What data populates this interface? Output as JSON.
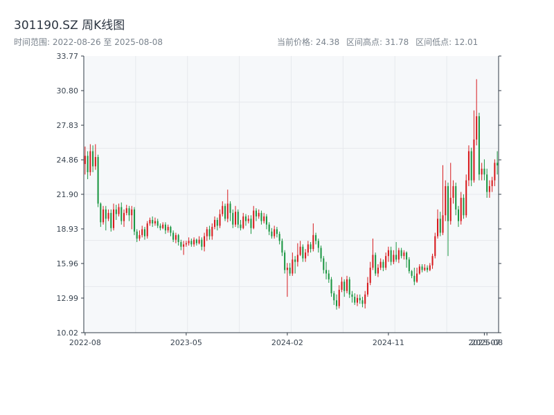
{
  "header": {
    "title": "301190.SZ 周K线图",
    "date_range": "时间范围: 2022-08-26 至 2025-08-08",
    "current_price": "当前价格: 24.38",
    "high": "区间高点: 31.78",
    "low": "区间低点: 12.01"
  },
  "colors": {
    "up": "#d7191c",
    "down": "#1a9641",
    "plot_bg": "#f6f8fa",
    "grid": "#e6e9ed",
    "axis": "#2f3a45"
  },
  "chart_data": {
    "type": "candlestick",
    "ylim": [
      10.02,
      33.77
    ],
    "y_ticks": [
      "33.77",
      "30.80",
      "27.83",
      "24.86",
      "21.90",
      "18.93",
      "15.96",
      "12.99",
      "10.02"
    ],
    "x_ticks": [
      "2022-08",
      "2023-05",
      "2024-02",
      "2024-11",
      "2025-07",
      "2025-08"
    ],
    "x_tick_index": [
      0,
      39,
      78,
      117,
      154,
      155
    ],
    "grid": true,
    "candles": [
      [
        24.5,
        25.2,
        26.0,
        23.6
      ],
      [
        25.2,
        23.8,
        25.6,
        23.2
      ],
      [
        23.8,
        25.6,
        26.2,
        23.5
      ],
      [
        25.6,
        24.3,
        26.1,
        23.8
      ],
      [
        24.3,
        25.1,
        26.2,
        24.0
      ],
      [
        25.1,
        21.1,
        25.3,
        20.8
      ],
      [
        21.1,
        19.5,
        21.2,
        19.1
      ],
      [
        19.5,
        20.6,
        20.9,
        19.3
      ],
      [
        20.6,
        19.8,
        20.9,
        18.8
      ],
      [
        19.8,
        20.3,
        20.6,
        19.6
      ],
      [
        20.3,
        19.0,
        20.6,
        18.7
      ],
      [
        19.0,
        20.6,
        21.1,
        18.8
      ],
      [
        20.6,
        20.2,
        21.0,
        19.7
      ],
      [
        20.2,
        20.8,
        21.1,
        20.0
      ],
      [
        20.8,
        19.6,
        21.2,
        19.3
      ],
      [
        19.6,
        20.3,
        20.6,
        19.1
      ],
      [
        20.3,
        20.7,
        21.0,
        20.1
      ],
      [
        20.7,
        20.1,
        20.9,
        19.6
      ],
      [
        20.1,
        20.6,
        20.9,
        18.9
      ],
      [
        20.6,
        18.7,
        20.8,
        18.4
      ],
      [
        18.7,
        18.1,
        18.9,
        17.8
      ],
      [
        18.1,
        18.4,
        18.8,
        17.9
      ],
      [
        18.4,
        18.9,
        19.2,
        18.2
      ],
      [
        18.9,
        18.3,
        19.1,
        18.0
      ],
      [
        18.3,
        19.4,
        19.6,
        18.1
      ],
      [
        19.4,
        19.7,
        19.9,
        19.2
      ],
      [
        19.7,
        19.4,
        20.0,
        19.1
      ],
      [
        19.4,
        19.6,
        19.9,
        19.2
      ],
      [
        19.6,
        19.2,
        19.8,
        19.0
      ],
      [
        19.2,
        19.0,
        19.4,
        18.8
      ],
      [
        19.0,
        19.3,
        19.5,
        18.9
      ],
      [
        19.3,
        18.8,
        19.5,
        18.5
      ],
      [
        18.8,
        19.1,
        19.3,
        18.6
      ],
      [
        19.1,
        18.6,
        19.2,
        18.3
      ],
      [
        18.6,
        18.0,
        18.8,
        17.8
      ],
      [
        18.0,
        18.4,
        18.6,
        17.7
      ],
      [
        18.4,
        17.8,
        18.5,
        17.5
      ],
      [
        17.8,
        17.4,
        18.0,
        17.1
      ],
      [
        17.4,
        17.6,
        17.9,
        16.7
      ],
      [
        17.6,
        17.7,
        17.9,
        17.4
      ],
      [
        17.7,
        17.9,
        18.2,
        17.5
      ],
      [
        17.9,
        17.6,
        18.1,
        17.4
      ],
      [
        17.6,
        18.0,
        18.2,
        17.4
      ],
      [
        18.0,
        17.7,
        18.1,
        17.5
      ],
      [
        17.7,
        18.0,
        18.3,
        17.6
      ],
      [
        18.0,
        17.4,
        18.2,
        17.1
      ],
      [
        17.4,
        18.3,
        18.6,
        17.0
      ],
      [
        18.3,
        18.9,
        19.1,
        17.9
      ],
      [
        18.9,
        18.3,
        19.2,
        18.0
      ],
      [
        18.3,
        19.1,
        19.4,
        18.0
      ],
      [
        19.1,
        19.7,
        20.0,
        18.9
      ],
      [
        19.7,
        19.2,
        19.9,
        18.8
      ],
      [
        19.2,
        20.2,
        20.6,
        19.0
      ],
      [
        20.2,
        20.9,
        21.3,
        20.0
      ],
      [
        20.9,
        19.8,
        21.1,
        19.6
      ],
      [
        19.8,
        21.1,
        22.3,
        19.5
      ],
      [
        21.1,
        20.3,
        21.3,
        19.6
      ],
      [
        20.3,
        19.3,
        20.6,
        19.0
      ],
      [
        19.3,
        20.4,
        20.9,
        19.1
      ],
      [
        20.4,
        19.3,
        20.6,
        19.0
      ],
      [
        19.3,
        19.0,
        19.7,
        18.8
      ],
      [
        19.0,
        20.0,
        20.3,
        18.9
      ],
      [
        20.0,
        19.6,
        20.2,
        19.2
      ],
      [
        19.6,
        19.8,
        20.1,
        19.4
      ],
      [
        19.8,
        19.0,
        20.1,
        18.5
      ],
      [
        19.0,
        20.5,
        20.9,
        18.9
      ],
      [
        20.5,
        20.0,
        20.7,
        19.6
      ],
      [
        20.0,
        20.3,
        20.6,
        19.8
      ],
      [
        20.3,
        19.6,
        20.5,
        19.3
      ],
      [
        19.6,
        20.0,
        20.3,
        19.4
      ],
      [
        20.0,
        19.3,
        20.2,
        18.9
      ],
      [
        19.3,
        18.7,
        19.5,
        18.4
      ],
      [
        18.7,
        18.3,
        19.0,
        18.1
      ],
      [
        18.3,
        18.9,
        19.2,
        18.1
      ],
      [
        18.9,
        18.5,
        19.1,
        18.2
      ],
      [
        18.5,
        17.9,
        18.7,
        17.6
      ],
      [
        17.9,
        16.9,
        18.1,
        16.6
      ],
      [
        16.9,
        15.4,
        17.1,
        15.1
      ],
      [
        15.4,
        15.6,
        16.0,
        13.1
      ],
      [
        15.6,
        15.1,
        16.0,
        14.9
      ],
      [
        15.1,
        16.3,
        16.9,
        14.9
      ],
      [
        16.3,
        16.1,
        16.6,
        15.1
      ],
      [
        16.1,
        16.7,
        17.7,
        15.7
      ],
      [
        16.7,
        17.4,
        17.9,
        16.6
      ],
      [
        17.4,
        16.4,
        17.6,
        16.1
      ],
      [
        16.4,
        16.9,
        17.2,
        16.1
      ],
      [
        16.9,
        17.6,
        17.9,
        16.6
      ],
      [
        17.6,
        17.2,
        17.8,
        16.9
      ],
      [
        17.2,
        18.4,
        19.4,
        17.0
      ],
      [
        18.4,
        17.9,
        18.6,
        17.6
      ],
      [
        17.9,
        17.3,
        18.1,
        16.9
      ],
      [
        17.3,
        16.4,
        17.5,
        16.1
      ],
      [
        16.4,
        15.4,
        16.6,
        15.1
      ],
      [
        15.4,
        15.1,
        16.1,
        14.6
      ],
      [
        15.1,
        14.6,
        15.4,
        14.3
      ],
      [
        14.6,
        13.4,
        14.8,
        13.1
      ],
      [
        13.4,
        12.8,
        13.6,
        12.4
      ],
      [
        12.8,
        12.3,
        13.3,
        12.0
      ],
      [
        12.3,
        13.7,
        14.1,
        12.1
      ],
      [
        13.7,
        14.4,
        14.8,
        13.5
      ],
      [
        14.4,
        13.6,
        14.6,
        13.1
      ],
      [
        13.6,
        14.6,
        14.9,
        13.4
      ],
      [
        14.6,
        13.3,
        14.8,
        13.0
      ],
      [
        13.3,
        13.1,
        13.6,
        12.6
      ],
      [
        13.1,
        12.6,
        13.4,
        12.4
      ],
      [
        12.6,
        13.0,
        13.3,
        12.3
      ],
      [
        13.0,
        12.8,
        13.3,
        12.5
      ],
      [
        12.8,
        12.5,
        13.1,
        12.2
      ],
      [
        12.5,
        13.3,
        13.6,
        12.1
      ],
      [
        13.3,
        14.3,
        14.8,
        13.1
      ],
      [
        14.3,
        15.6,
        16.1,
        14.1
      ],
      [
        15.6,
        16.7,
        18.1,
        15.4
      ],
      [
        16.7,
        15.1,
        16.9,
        14.9
      ],
      [
        15.1,
        15.6,
        15.9,
        14.8
      ],
      [
        15.6,
        16.1,
        16.4,
        15.4
      ],
      [
        16.1,
        15.6,
        16.3,
        15.3
      ],
      [
        15.6,
        16.6,
        16.9,
        15.4
      ],
      [
        16.6,
        17.1,
        17.4,
        16.1
      ],
      [
        17.1,
        16.1,
        17.4,
        15.8
      ],
      [
        16.1,
        16.7,
        17.1,
        15.9
      ],
      [
        16.7,
        16.3,
        17.8,
        16.1
      ],
      [
        16.3,
        17.1,
        17.3,
        16.0
      ],
      [
        17.1,
        16.6,
        17.3,
        16.4
      ],
      [
        16.6,
        16.9,
        17.1,
        16.3
      ],
      [
        16.9,
        16.3,
        17.0,
        15.6
      ],
      [
        16.3,
        15.3,
        16.5,
        15.1
      ],
      [
        15.3,
        14.9,
        15.4,
        14.7
      ],
      [
        14.9,
        14.4,
        15.6,
        14.1
      ],
      [
        14.4,
        15.1,
        15.6,
        14.3
      ],
      [
        15.1,
        15.7,
        15.9,
        15.0
      ],
      [
        15.7,
        15.4,
        15.9,
        15.2
      ],
      [
        15.4,
        15.6,
        15.9,
        15.3
      ],
      [
        15.6,
        15.4,
        15.8,
        15.2
      ],
      [
        15.4,
        15.8,
        16.0,
        15.3
      ],
      [
        15.8,
        16.6,
        16.8,
        15.5
      ],
      [
        16.6,
        18.3,
        18.6,
        16.4
      ],
      [
        18.3,
        19.8,
        20.6,
        18.1
      ],
      [
        19.8,
        18.6,
        20.4,
        18.3
      ],
      [
        18.6,
        20.1,
        24.4,
        18.4
      ],
      [
        20.1,
        22.6,
        23.1,
        19.6
      ],
      [
        22.6,
        19.6,
        22.9,
        16.6
      ],
      [
        19.6,
        21.6,
        24.6,
        19.3
      ],
      [
        21.6,
        22.6,
        23.1,
        21.1
      ],
      [
        22.6,
        20.6,
        22.9,
        20.1
      ],
      [
        20.6,
        19.6,
        20.9,
        19.1
      ],
      [
        19.6,
        21.6,
        22.1,
        19.3
      ],
      [
        21.6,
        20.1,
        21.9,
        19.8
      ],
      [
        20.1,
        23.1,
        23.6,
        19.9
      ],
      [
        23.1,
        25.6,
        26.1,
        22.6
      ],
      [
        25.6,
        23.1,
        25.9,
        22.6
      ],
      [
        23.1,
        26.6,
        29.1,
        22.9
      ],
      [
        26.6,
        28.6,
        31.78,
        26.1
      ],
      [
        28.6,
        23.6,
        28.9,
        23.1
      ],
      [
        23.6,
        24.1,
        24.6,
        23.1
      ],
      [
        24.1,
        23.6,
        24.9,
        23.1
      ],
      [
        23.6,
        22.1,
        24.1,
        21.6
      ],
      [
        22.1,
        22.6,
        23.1,
        21.6
      ],
      [
        22.6,
        23.1,
        23.4,
        22.1
      ],
      [
        23.1,
        24.6,
        24.9,
        22.6
      ],
      [
        24.6,
        24.38,
        25.6,
        23.6
      ]
    ]
  }
}
